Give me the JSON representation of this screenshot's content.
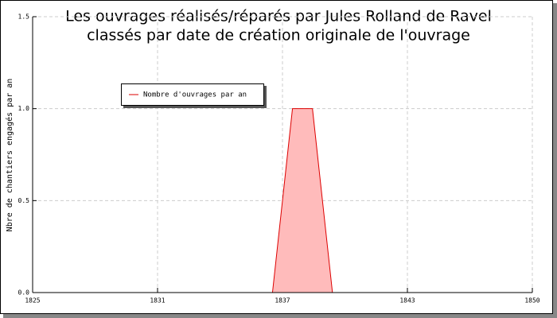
{
  "chart_data": {
    "type": "area",
    "title": "Les ouvrages réalisés/réparés par Jules Rolland de Ravel",
    "subtitle": "classés par date de création originale de l'ouvrage",
    "y_label": "Nbre de chantiers engagés par an",
    "x": [
      1837,
      1838,
      1839,
      1840
    ],
    "series": [
      {
        "name": "Nombre d'ouvrages par an",
        "color": "#dd0000",
        "fill": "#ffbbbb",
        "values": [
          0,
          1,
          1,
          0
        ]
      }
    ],
    "xlim": [
      1825,
      1850
    ],
    "xticks": [
      1825,
      {
        "value": 1831.25,
        "label": "1831"
      },
      {
        "value": 1837.5,
        "label": "1837"
      },
      {
        "value": 1843.75,
        "label": "1843"
      },
      1850
    ],
    "ylim": [
      0,
      1.5
    ],
    "yticks": [
      {
        "value": 0,
        "label": "0.0"
      },
      0.5,
      {
        "value": 1,
        "label": "1.0"
      },
      1.5
    ],
    "grid": true
  }
}
